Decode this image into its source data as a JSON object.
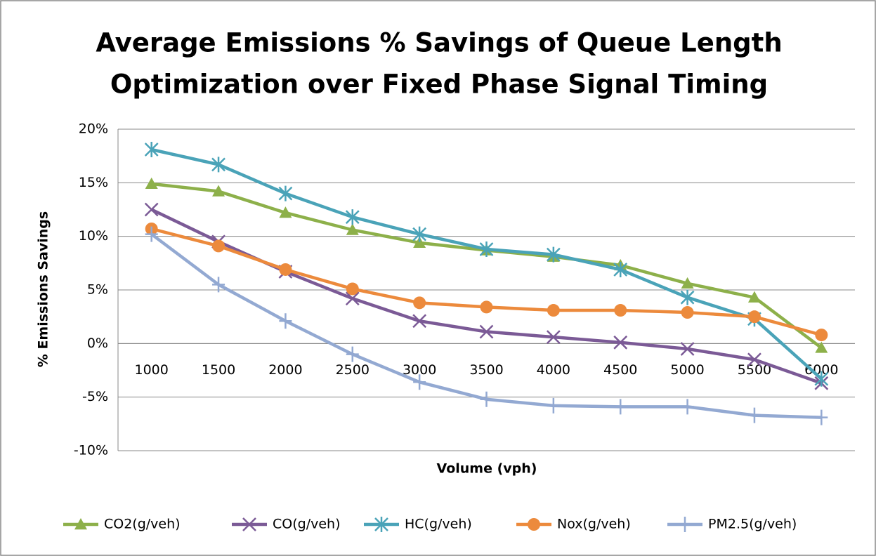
{
  "chart_data": {
    "type": "line",
    "title": [
      "Average Emissions % Savings of Queue Length",
      "Optimization over Fixed Phase Signal Timing"
    ],
    "x_label": "Volume (vph)",
    "y_label": "% Emissions Savings",
    "categories": [
      "1000",
      "1500",
      "2000",
      "2500",
      "3000",
      "3500",
      "4000",
      "4500",
      "5000",
      "5500",
      "6000"
    ],
    "ylim": [
      -10,
      20
    ],
    "yticks": [
      {
        "value": -10,
        "label": "-10%"
      },
      {
        "value": -5,
        "label": "-5%"
      },
      {
        "value": 0,
        "label": "0%"
      },
      {
        "value": 5,
        "label": "5%"
      },
      {
        "value": 10,
        "label": "10%"
      },
      {
        "value": 15,
        "label": "15%"
      },
      {
        "value": 20,
        "label": "20%"
      }
    ],
    "grid": true,
    "legend": "bottom",
    "series": [
      {
        "name": "CO2(g/veh)",
        "color": "#8db04a",
        "marker": "triangle",
        "values": [
          14.9,
          14.2,
          12.2,
          10.6,
          9.4,
          8.7,
          8.1,
          7.3,
          5.6,
          4.3,
          -0.4
        ]
      },
      {
        "name": "CO(g/veh)",
        "color": "#7b5a96",
        "marker": "x",
        "values": [
          12.5,
          9.5,
          6.7,
          4.2,
          2.1,
          1.1,
          0.6,
          0.1,
          -0.5,
          -1.5,
          -3.7
        ]
      },
      {
        "name": "HC(g/veh)",
        "color": "#4aa3b8",
        "marker": "asterisk",
        "values": [
          18.1,
          16.7,
          14.0,
          11.8,
          10.2,
          8.8,
          8.3,
          6.9,
          4.3,
          2.3,
          -3.3
        ]
      },
      {
        "name": "Nox(g/veh)",
        "color": "#ec8a3c",
        "marker": "circle",
        "values": [
          10.7,
          9.1,
          6.9,
          5.1,
          3.8,
          3.4,
          3.1,
          3.1,
          2.9,
          2.5,
          0.8
        ]
      },
      {
        "name": "PM2.5(g/veh)",
        "color": "#93a9d2",
        "marker": "plus",
        "values": [
          10.2,
          5.5,
          2.1,
          -1.0,
          -3.6,
          -5.2,
          -5.8,
          -5.9,
          -5.9,
          -6.7,
          -6.9
        ]
      }
    ]
  }
}
